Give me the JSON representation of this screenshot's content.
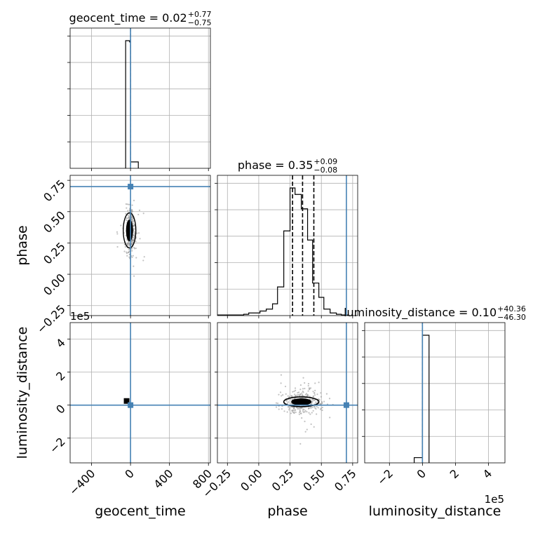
{
  "chart_data": {
    "type": "corner",
    "parameters": [
      "geocent_time",
      "phase",
      "luminosity_distance"
    ],
    "axis_labels": {
      "geocent_time": "geocent_time",
      "phase": "phase",
      "luminosity_distance": "luminosity_distance"
    },
    "titles": [
      {
        "name": "geocent_time",
        "prefix": "geocent_time = 0.02",
        "plus": "+0.77",
        "minus": "−0.75",
        "median": 0.02
      },
      {
        "name": "phase",
        "prefix": "phase = 0.35",
        "plus": "+0.09",
        "minus": "−0.08",
        "median": 0.35
      },
      {
        "name": "luminosity_distance",
        "prefix": "luminosity_distance = 0.10",
        "plus": "+40.36",
        "minus": "−46.30",
        "median": 0.1
      }
    ],
    "ranges": {
      "geocent_time": [
        -620,
        820
      ],
      "phase": [
        -0.33,
        0.79
      ],
      "luminosity_distance": [
        -350000,
        500000
      ]
    },
    "ticks": {
      "geocent_time": {
        "values": [
          -400,
          0,
          400,
          800
        ],
        "labels": [
          "−400",
          "0",
          "400",
          "800"
        ]
      },
      "phase": {
        "values": [
          -0.25,
          0.0,
          0.25,
          0.5,
          0.75
        ],
        "labels": [
          "−0.25",
          "0.00",
          "0.25",
          "0.50",
          "0.75"
        ]
      },
      "luminosity_distance": {
        "values": [
          -200000,
          0,
          200000,
          400000
        ],
        "labels": [
          "−2",
          "0",
          "2",
          "4"
        ]
      }
    },
    "offset_text": "1e5",
    "injection": {
      "geocent_time": 0,
      "phase": 0.7,
      "luminosity_distance": 0
    },
    "quantiles": {
      "phase": [
        0.27,
        0.35,
        0.44
      ]
    },
    "histograms": {
      "geocent_time": {
        "edges": [
          -50,
          -10,
          0,
          80
        ],
        "counts": [
          1.0,
          0.99,
          0.05
        ]
      },
      "phase": {
        "edges": [
          -0.33,
          -0.22,
          -0.17,
          -0.12,
          -0.08,
          -0.03,
          0.01,
          0.06,
          0.11,
          0.15,
          0.2,
          0.25,
          0.29,
          0.34,
          0.39,
          0.43,
          0.48,
          0.52,
          0.57,
          0.62,
          0.66,
          0.71
        ],
        "counts": [
          0.005,
          0.005,
          0.005,
          0.01,
          0.02,
          0.02,
          0.035,
          0.05,
          0.09,
          0.22,
          0.65,
          0.98,
          0.93,
          0.82,
          0.58,
          0.25,
          0.14,
          0.05,
          0.02,
          0.01,
          0.005
        ]
      },
      "luminosity_distance": {
        "edges": [
          -50000,
          -10000,
          0,
          40000
        ],
        "counts": [
          0.04,
          0.04,
          0.98
        ]
      }
    },
    "grid": true
  }
}
